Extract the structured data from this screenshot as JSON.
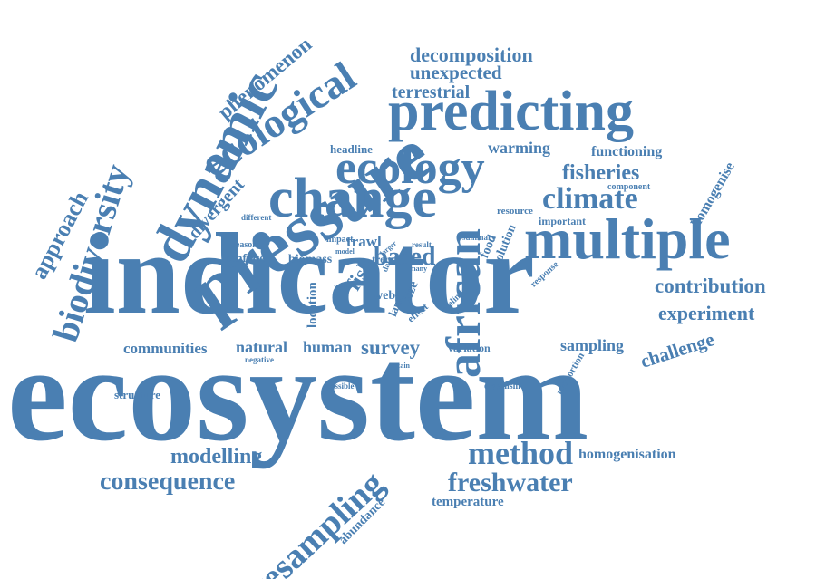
{
  "color": "#4a7fb2",
  "background": "#ffffff",
  "words": {
    "ecosystem": "ecosystem",
    "indicator": "indicator",
    "pressure": "pressure",
    "predicting": "predicting",
    "ecology": "ecology",
    "change": "change",
    "multiple": "multiple",
    "dynamic": "dynamic",
    "biodiversity": "biodiversity",
    "ecological": "ecological",
    "african": "african",
    "resampling": "resampling",
    "method": "method",
    "freshwater": "freshwater",
    "consequence": "consequence",
    "modelling": "modelling",
    "climate": "climate",
    "fisheries": "fisheries",
    "contribution": "contribution",
    "experiment": "experiment",
    "challenge": "challenge",
    "sampling": "sampling",
    "survey": "survey",
    "natural": "natural",
    "human": "human",
    "communities": "communities",
    "approach": "approach",
    "phenomenon": "phenomenon",
    "decomposition": "decomposition",
    "unexpected": "unexpected",
    "terrestrial": "terrestrial",
    "warming": "warming",
    "functioning": "functioning",
    "homogenise": "homogenise",
    "homogenisation": "homogenisation",
    "divergent": "divergent",
    "based": "based",
    "trawl": "trawl",
    "fish": "fish",
    "location": "location",
    "temperature": "temperature",
    "abundance": "abundance",
    "structure": "structure",
    "headline": "headline",
    "biomass": "biomass",
    "conflate": "conflate",
    "season": "season",
    "variation": "variation",
    "solution": "solution",
    "food": "food",
    "resource": "resource",
    "important": "important",
    "component": "component",
    "web": "web",
    "land": "land",
    "size": "size",
    "effect": "effect",
    "scaling": "scaling",
    "trend": "trend",
    "impact": "impact",
    "model": "model",
    "data": "data",
    "larger": "larger",
    "result": "result",
    "summary": "summary",
    "many": "many",
    "value": "value",
    "different": "different",
    "negative": "negative",
    "possible": "possible",
    "certain": "certain",
    "organism": "organism",
    "proportion": "proportion",
    "response": "response"
  }
}
